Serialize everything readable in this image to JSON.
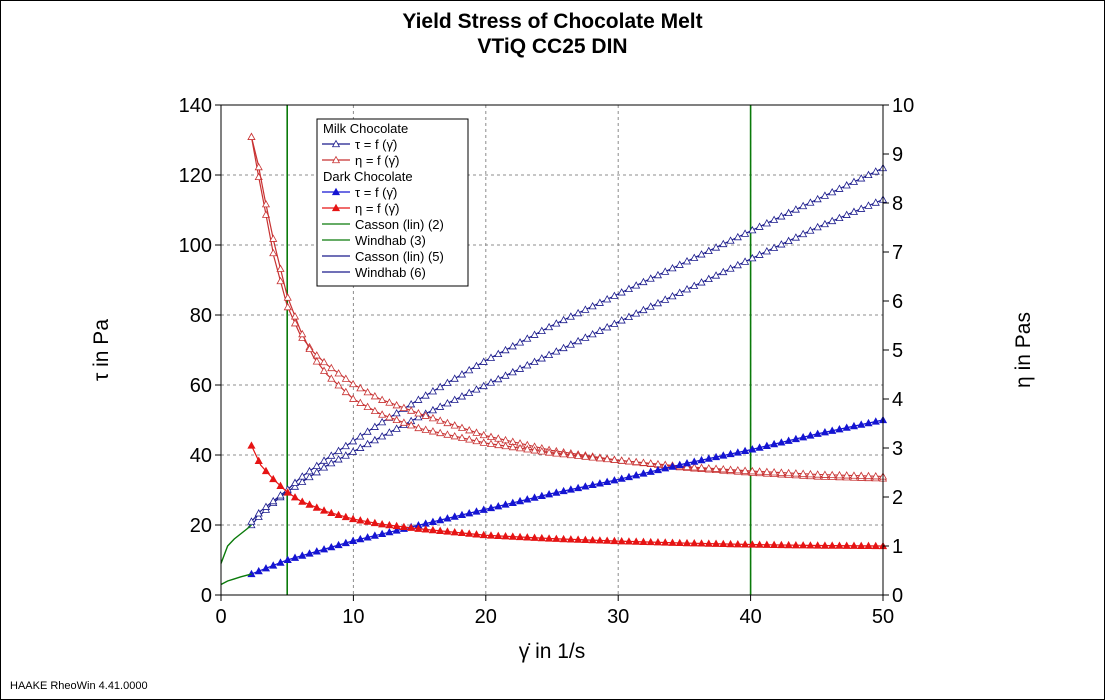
{
  "chart_data": {
    "type": "line",
    "title": "Yield Stress of Chocolate Melt",
    "subtitle": "VTiQ CC25 DIN",
    "xlabel": "γ̇ in 1/s",
    "ylabel_left": "τ in Pa",
    "ylabel_right": "η in Pas",
    "xlim": [
      0,
      50
    ],
    "ylim_left": [
      0,
      140
    ],
    "ylim_right": [
      0,
      10
    ],
    "x_ticks": [
      "0",
      "10",
      "20",
      "30",
      "40",
      "50"
    ],
    "y_left_ticks": [
      "0",
      "20",
      "40",
      "60",
      "80",
      "100",
      "120",
      "140"
    ],
    "y_right_ticks": [
      "0",
      "1",
      "2",
      "3",
      "4",
      "5",
      "6",
      "7",
      "8",
      "9",
      "10"
    ],
    "grid": true,
    "legend_position": "top-left",
    "legend": [
      {
        "type": "header",
        "label": "Milk Chocolate"
      },
      {
        "type": "entry",
        "label": "τ = f (γ̇)",
        "color": "#1a1a8c",
        "marker": "open-triangle"
      },
      {
        "type": "entry",
        "label": "η = f (γ̇)",
        "color": "#c83232",
        "marker": "open-triangle"
      },
      {
        "type": "header",
        "label": "Dark Chocolate"
      },
      {
        "type": "entry",
        "label": "τ = f (γ̇)",
        "color": "#1414d2",
        "marker": "filled-triangle"
      },
      {
        "type": "entry",
        "label": "η = f (γ̇)",
        "color": "#e61414",
        "marker": "filled-triangle"
      },
      {
        "type": "entry",
        "label": "Casson (lin) (2)",
        "color": "#0a7a0a",
        "marker": "line"
      },
      {
        "type": "entry",
        "label": "Windhab (3)",
        "color": "#0a7a0a",
        "marker": "line"
      },
      {
        "type": "entry",
        "label": "Casson (lin) (5)",
        "color": "#1a1a8c",
        "marker": "line"
      },
      {
        "type": "entry",
        "label": "Windhab (6)",
        "color": "#1a1a8c",
        "marker": "line"
      }
    ],
    "vertical_markers_x": [
      5,
      40
    ],
    "series": [
      {
        "axis": "left",
        "color": "#1a1a8c",
        "style": "open-triangle",
        "x": [
          2.3,
          3,
          4,
          5,
          6,
          8,
          10,
          12,
          15,
          20,
          25,
          30,
          35,
          40,
          45,
          50
        ],
        "y": [
          20,
          23,
          26.5,
          29.5,
          32,
          37,
          41,
          45,
          51,
          60,
          69,
          78,
          87,
          96,
          105,
          113
        ]
      },
      {
        "axis": "left",
        "color": "#1a1a8c",
        "style": "open-triangle",
        "x": [
          2.3,
          3,
          4,
          5,
          6,
          8,
          10,
          12,
          15,
          20,
          25,
          30,
          35,
          40,
          45,
          50
        ],
        "y": [
          21,
          24,
          27,
          30,
          33.5,
          39,
          44,
          49,
          56,
          67,
          77,
          86,
          95,
          104,
          113,
          122
        ]
      },
      {
        "axis": "right",
        "color": "#c83232",
        "style": "open-triangle",
        "x": [
          2.3,
          2.8,
          3.3,
          4,
          5,
          6,
          7,
          8,
          10,
          12,
          15,
          20,
          25,
          30,
          35,
          40,
          45,
          50
        ],
        "y": [
          9.35,
          8.6,
          7.9,
          6.9,
          5.9,
          5.3,
          4.95,
          4.7,
          4.3,
          4.0,
          3.7,
          3.25,
          2.95,
          2.75,
          2.6,
          2.5,
          2.42,
          2.38
        ]
      },
      {
        "axis": "right",
        "color": "#c83232",
        "style": "open-triangle",
        "x": [
          2.3,
          2.8,
          3.3,
          4,
          5,
          6,
          7,
          8,
          10,
          12,
          15,
          20,
          25,
          30,
          35,
          40,
          45,
          50
        ],
        "y": [
          9.35,
          8.8,
          8.1,
          7.2,
          6.1,
          5.4,
          4.85,
          4.5,
          4.0,
          3.7,
          3.4,
          3.1,
          2.9,
          2.75,
          2.62,
          2.53,
          2.46,
          2.42
        ]
      },
      {
        "axis": "left",
        "color": "#1414d2",
        "style": "filled-triangle",
        "x": [
          2.3,
          5,
          10,
          15,
          20,
          25,
          30,
          35,
          40,
          45,
          50
        ],
        "y": [
          6,
          10,
          15.5,
          20,
          24.5,
          29,
          33,
          37.5,
          41.5,
          46,
          50
        ]
      },
      {
        "axis": "right",
        "color": "#e61414",
        "style": "filled-triangle",
        "x": [
          2.3,
          3,
          4,
          5,
          6,
          8,
          10,
          12,
          15,
          20,
          25,
          30,
          35,
          40,
          45,
          50
        ],
        "y": [
          3.05,
          2.65,
          2.35,
          2.1,
          1.92,
          1.7,
          1.55,
          1.45,
          1.35,
          1.22,
          1.15,
          1.1,
          1.06,
          1.03,
          1.01,
          1.0
        ]
      },
      {
        "axis": "left",
        "color": "#0a7a0a",
        "style": "line",
        "x": [
          0,
          0.5,
          1,
          1.5,
          2,
          2.3
        ],
        "y": [
          9,
          14,
          16,
          17.5,
          19,
          20
        ]
      },
      {
        "axis": "left",
        "color": "#0a7a0a",
        "style": "line",
        "x": [
          0,
          0.5,
          1,
          1.5,
          2,
          2.3
        ],
        "y": [
          3,
          4,
          4.6,
          5.2,
          5.7,
          6
        ]
      }
    ]
  },
  "footer": "HAAKE RheoWin 4.41.0000"
}
